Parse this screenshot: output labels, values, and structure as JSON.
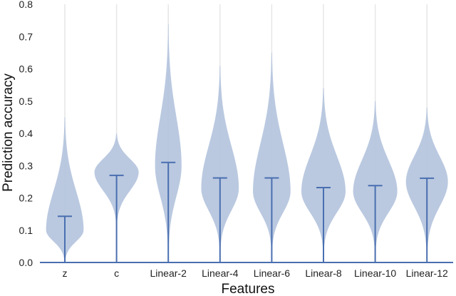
{
  "chart_data": {
    "type": "violin",
    "xlabel": "Features",
    "ylabel": "Prediction accuracy",
    "ylim": [
      0.0,
      0.8
    ],
    "yticks": [
      0.0,
      0.1,
      0.2,
      0.3,
      0.4,
      0.5,
      0.6,
      0.7,
      0.8
    ],
    "ytick_labels": [
      "0.0",
      "0.1",
      "0.2",
      "0.3",
      "0.4",
      "0.5",
      "0.6",
      "0.7",
      "0.8"
    ],
    "categories": [
      "z",
      "c",
      "Linear-2",
      "Linear-4",
      "Linear-6",
      "Linear-8",
      "Linear-10",
      "Linear-12"
    ],
    "distributions": [
      {
        "category": "z",
        "min": 0.01,
        "max": 0.45,
        "mode": 0.1,
        "median_line": 0.143,
        "max_density_width": 0.85
      },
      {
        "category": "c",
        "min": 0.13,
        "max": 0.4,
        "mode": 0.28,
        "median_line": 0.27,
        "max_density_width": 1.0
      },
      {
        "category": "Linear-2",
        "min": 0.05,
        "max": 0.74,
        "mode": 0.3,
        "median_line": 0.31,
        "max_density_width": 0.6
      },
      {
        "category": "Linear-4",
        "min": 0.05,
        "max": 0.61,
        "mode": 0.23,
        "median_line": 0.262,
        "max_density_width": 0.85
      },
      {
        "category": "Linear-6",
        "min": 0.05,
        "max": 0.65,
        "mode": 0.22,
        "median_line": 0.262,
        "max_density_width": 0.85
      },
      {
        "category": "Linear-8",
        "min": 0.05,
        "max": 0.54,
        "mode": 0.22,
        "median_line": 0.232,
        "max_density_width": 1.0
      },
      {
        "category": "Linear-10",
        "min": 0.05,
        "max": 0.5,
        "mode": 0.22,
        "median_line": 0.238,
        "max_density_width": 1.0
      },
      {
        "category": "Linear-12",
        "min": 0.05,
        "max": 0.48,
        "mode": 0.25,
        "median_line": 0.261,
        "max_density_width": 0.95
      }
    ],
    "grid": "vertical",
    "colors": {
      "violin_fill": "#b3c3dd",
      "stat_line": "#4a6fb0",
      "axis_line": "#4a6fb0",
      "grid": "#e6e6e6"
    }
  }
}
